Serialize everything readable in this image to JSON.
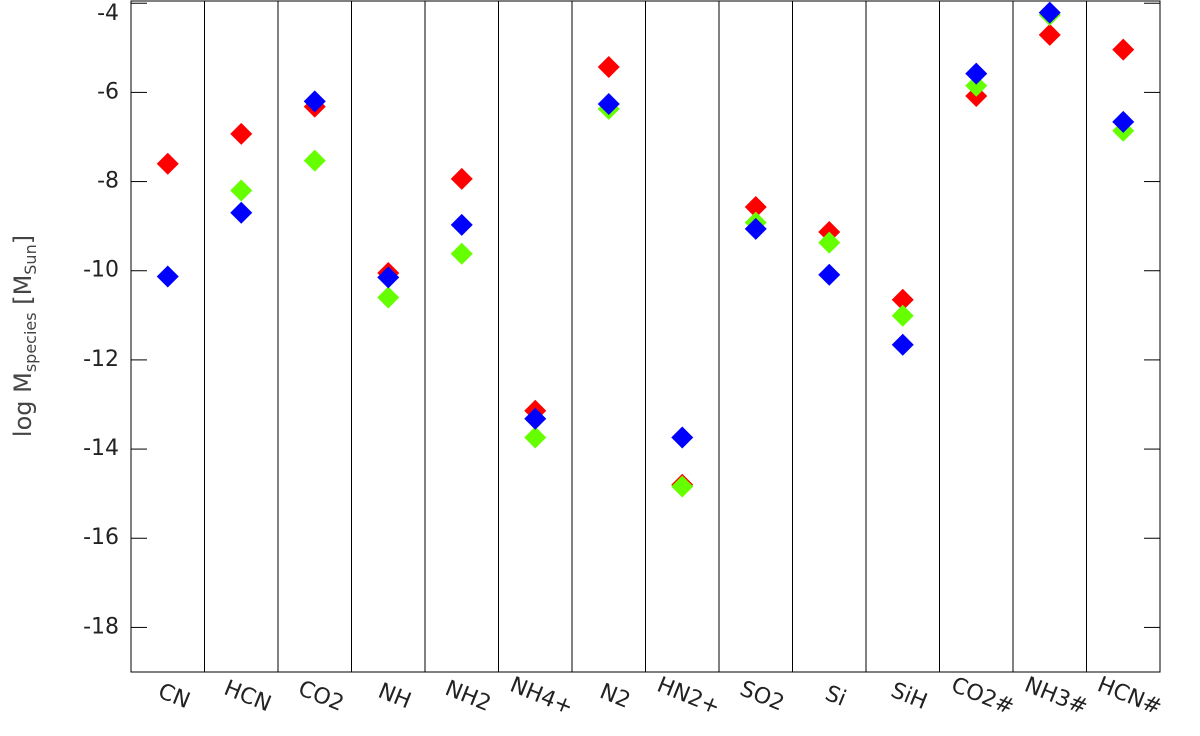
{
  "chart_data": {
    "type": "scatter",
    "ylabel": [
      "log M",
      "species",
      " [M",
      "Sun",
      "]"
    ],
    "categories": [
      "CN",
      "HCN",
      "CO2",
      "NH",
      "NH2",
      "NH4+",
      "N2",
      "HN2+",
      "SO2",
      "Si",
      "SiH",
      "CO2#",
      "NH3#",
      "HCN#"
    ],
    "series": [
      {
        "color": "#ff0000",
        "values": [
          -7.6,
          -6.93,
          -6.32,
          -10.05,
          -7.94,
          -13.14,
          -5.43,
          -14.8,
          -8.57,
          -9.13,
          -10.65,
          -6.08,
          -4.71,
          -5.04
        ]
      },
      {
        "color": "#66ff00",
        "values": [
          null,
          -8.2,
          -7.53,
          -10.6,
          -9.62,
          -13.74,
          -6.37,
          -14.84,
          -8.92,
          -9.37,
          -11.01,
          -5.85,
          -4.26,
          -6.86
        ]
      },
      {
        "color": "#0000ff",
        "values": [
          -10.13,
          -8.7,
          -6.2,
          -10.15,
          -8.97,
          -13.32,
          -6.26,
          -13.74,
          -9.06,
          -10.09,
          -11.66,
          -5.58,
          -4.21,
          -6.66
        ]
      }
    ],
    "ylim": [
      -19,
      -3.95
    ],
    "yticks": [
      -18,
      -16,
      -14,
      -12,
      -10,
      -8,
      -6,
      -4
    ]
  }
}
